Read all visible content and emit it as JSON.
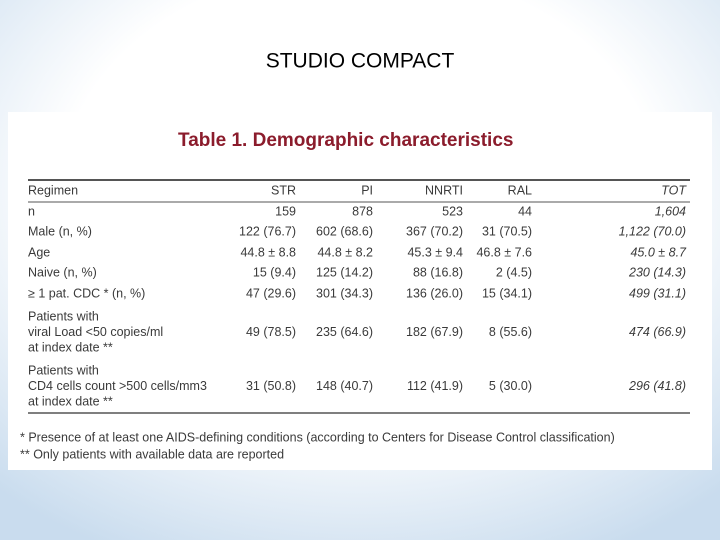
{
  "slide": {
    "title": "STUDIO COMPACT"
  },
  "table": {
    "caption": "Table 1. Demographic characteristics",
    "header": [
      "Regimen",
      "STR",
      "PI",
      "NNRTI",
      "RAL",
      "TOT"
    ],
    "rows": [
      {
        "label": [
          "n"
        ],
        "cells": [
          "159",
          "878",
          "523",
          "44",
          "1,604"
        ]
      },
      {
        "label": [
          "Male (n, %)"
        ],
        "cells": [
          "122 (76.7)",
          "602 (68.6)",
          "367 (70.2)",
          "31 (70.5)",
          "1,122 (70.0)"
        ]
      },
      {
        "label": [
          "Age"
        ],
        "cells": [
          "44.8 ± 8.8",
          "44.8 ± 8.2",
          "45.3 ± 9.4",
          "46.8 ± 7.6",
          "45.0 ± 8.7"
        ]
      },
      {
        "label": [
          "Naive (n, %)"
        ],
        "cells": [
          "15 (9.4)",
          "125 (14.2)",
          "88 (16.8)",
          "2 (4.5)",
          "230 (14.3)"
        ]
      },
      {
        "label": [
          "≥ 1 pat. CDC * (n, %)"
        ],
        "cells": [
          "47 (29.6)",
          "301 (34.3)",
          "136 (26.0)",
          "15 (34.1)",
          "499 (31.1)"
        ]
      },
      {
        "label": [
          "Patients with",
          "viral Load <50 copies/ml",
          "at index date **"
        ],
        "cells": [
          "49 (78.5)",
          "235 (64.6)",
          "182 (67.9)",
          "8 (55.6)",
          "474 (66.9)"
        ]
      },
      {
        "label": [
          "Patients with",
          "CD4 cells count >500 cells/mm3",
          "at index date **"
        ],
        "cells": [
          "31 (50.8)",
          "148 (40.7)",
          "112 (41.9)",
          "5 (30.0)",
          "296 (41.8)"
        ]
      }
    ],
    "footnotes": [
      "* Presence of at least one AIDS-defining conditions (according to Centers for Disease Control classification)",
      "** Only patients with available data are reported"
    ]
  }
}
